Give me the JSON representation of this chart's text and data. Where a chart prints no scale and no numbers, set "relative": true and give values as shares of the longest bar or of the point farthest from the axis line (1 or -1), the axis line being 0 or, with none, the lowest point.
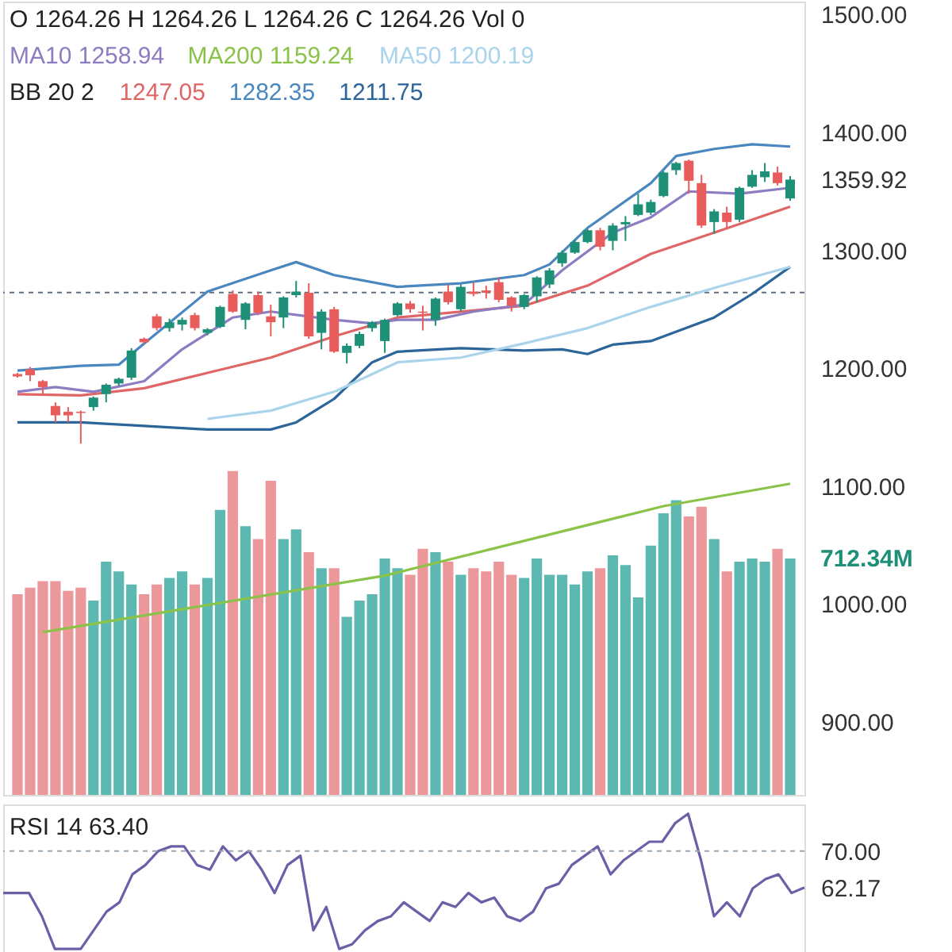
{
  "chart_data": [
    {
      "type": "candlestick",
      "title": "O 1264.26 H 1264.26 L 1264.26 C 1264.26 Vol 0",
      "legend": "top left",
      "annotations": [
        "BB 20 2"
      ],
      "categories": [
        null,
        null,
        null,
        null,
        null,
        null,
        null,
        null,
        null,
        null,
        null,
        null,
        null,
        null,
        null,
        null,
        null,
        null,
        null,
        null,
        null,
        null,
        null,
        null,
        null,
        null,
        null,
        null,
        null,
        null,
        null,
        null,
        null,
        null,
        null,
        null,
        null,
        null,
        null,
        null,
        null,
        null,
        null,
        null,
        null,
        null,
        null,
        null,
        null,
        null,
        null,
        null,
        null,
        null,
        null,
        null,
        null,
        null,
        null,
        null,
        null,
        null
      ],
      "ohlc": [
        [
          1195,
          1196,
          1192,
          1193
        ],
        [
          1199,
          1201,
          1189,
          1194
        ],
        [
          1189,
          1190,
          1178,
          1184
        ],
        [
          1168,
          1171,
          1154,
          1160
        ],
        [
          1163,
          1167,
          1154,
          1160
        ],
        [
          1163,
          1164,
          1136,
          1162
        ],
        [
          1167,
          1176,
          1164,
          1175
        ],
        [
          1178,
          1187,
          1171,
          1186
        ],
        [
          1187,
          1192,
          1185,
          1191
        ],
        [
          1192,
          1217,
          1190,
          1215
        ],
        [
          1225,
          1226,
          1221,
          1222
        ],
        [
          1244,
          1246,
          1232,
          1234
        ],
        [
          1234,
          1242,
          1231,
          1239
        ],
        [
          1237,
          1243,
          1232,
          1241
        ],
        [
          1245,
          1247,
          1232,
          1234
        ],
        [
          1230,
          1234,
          1228,
          1233
        ],
        [
          1235,
          1253,
          1234,
          1252
        ],
        [
          1263,
          1266,
          1247,
          1248
        ],
        [
          1241,
          1256,
          1233,
          1255
        ],
        [
          1262,
          1265,
          1245,
          1247
        ],
        [
          1244,
          1254,
          1227,
          1239
        ],
        [
          1243,
          1261,
          1234,
          1260
        ],
        [
          1262,
          1274,
          1260,
          1265
        ],
        [
          1264,
          1272,
          1225,
          1227
        ],
        [
          1230,
          1250,
          1216,
          1248
        ],
        [
          1250,
          1252,
          1213,
          1214
        ],
        [
          1213,
          1221,
          1204,
          1219
        ],
        [
          1219,
          1231,
          1217,
          1229
        ],
        [
          1234,
          1240,
          1231,
          1239
        ],
        [
          1223,
          1242,
          1213,
          1241
        ],
        [
          1245,
          1256,
          1244,
          1255
        ],
        [
          1255,
          1257,
          1247,
          1250
        ],
        [
          1248,
          1253,
          1232,
          1247
        ],
        [
          1241,
          1260,
          1236,
          1259
        ],
        [
          1265,
          1271,
          1254,
          1256
        ],
        [
          1250,
          1271,
          1248,
          1269
        ],
        [
          1265,
          1273,
          1261,
          1263
        ],
        [
          1266,
          1270,
          1259,
          1264
        ],
        [
          1273,
          1277,
          1256,
          1258
        ],
        [
          1260,
          1261,
          1248,
          1253
        ],
        [
          1252,
          1263,
          1250,
          1262
        ],
        [
          1261,
          1278,
          1256,
          1277
        ],
        [
          1271,
          1285,
          1268,
          1283
        ],
        [
          1289,
          1300,
          1286,
          1298
        ],
        [
          1298,
          1309,
          1297,
          1307
        ],
        [
          1307,
          1318,
          1306,
          1317
        ],
        [
          1317,
          1319,
          1300,
          1303
        ],
        [
          1308,
          1323,
          1300,
          1321
        ],
        [
          1322,
          1329,
          1308,
          1324
        ],
        [
          1330,
          1348,
          1329,
          1339
        ],
        [
          1332,
          1343,
          1330,
          1341
        ],
        [
          1346,
          1367,
          1345,
          1366
        ],
        [
          1368,
          1375,
          1364,
          1374
        ],
        [
          1376,
          1377,
          1348,
          1359
        ],
        [
          1357,
          1364,
          1319,
          1321
        ],
        [
          1324,
          1335,
          1314,
          1333
        ],
        [
          1332,
          1337,
          1319,
          1324
        ],
        [
          1326,
          1354,
          1324,
          1353
        ],
        [
          1354,
          1368,
          1353,
          1364
        ],
        [
          1362,
          1374,
          1358,
          1367
        ],
        [
          1366,
          1371,
          1355,
          1357
        ],
        [
          1344,
          1363,
          1342,
          1360
        ]
      ],
      "colors": [
        "#e85c5c",
        "#e85c5c",
        "#e85c5c",
        "#e85c5c",
        "#e85c5c",
        "#e85c5c",
        "#1e9078",
        "#1e9078",
        "#1e9078",
        "#1e9078",
        "#e85c5c",
        "#e85c5c",
        "#1e9078",
        "#1e9078",
        "#e85c5c",
        "#1e9078",
        "#1e9078",
        "#e85c5c",
        "#1e9078",
        "#e85c5c",
        "#e85c5c",
        "#1e9078",
        "#1e9078",
        "#e85c5c",
        "#1e9078",
        "#e85c5c",
        "#1e9078",
        "#1e9078",
        "#1e9078",
        "#1e9078",
        "#1e9078",
        "#e85c5c",
        "#e85c5c",
        "#1e9078",
        "#e85c5c",
        "#1e9078",
        "#e85c5c",
        "#e85c5c",
        "#e85c5c",
        "#e85c5c",
        "#1e9078",
        "#1e9078",
        "#1e9078",
        "#1e9078",
        "#1e9078",
        "#1e9078",
        "#e85c5c",
        "#1e9078",
        "#1e9078",
        "#1e9078",
        "#1e9078",
        "#1e9078",
        "#1e9078",
        "#e85c5c",
        "#e85c5c",
        "#1e9078",
        "#e85c5c",
        "#1e9078",
        "#1e9078",
        "#1e9078",
        "#e85c5c",
        "#1e9078"
      ],
      "series": [
        {
          "type": "line",
          "name": "1247.05",
          "color": "#e06666",
          "values": [
            1178,
            null,
            null,
            null,
            null,
            1177,
            null,
            null,
            null,
            null,
            1183,
            null,
            null,
            null,
            null,
            1196,
            null,
            null,
            null,
            null,
            1209,
            null,
            null,
            null,
            null,
            1227,
            null,
            null,
            null,
            null,
            1243,
            null,
            null,
            null,
            null,
            1248,
            null,
            null,
            null,
            null,
            1253,
            null,
            null,
            null,
            null,
            1270,
            null,
            null,
            null,
            null,
            1297,
            null,
            null,
            null,
            null,
            1315,
            null,
            null,
            null,
            null,
            null,
            1337
          ]
        },
        {
          "type": "line",
          "name": "1282.35",
          "color": "#4a87bf",
          "values": [
            1198,
            null,
            null,
            null,
            null,
            1202,
            null,
            null,
            1203,
            null,
            1221,
            null,
            null,
            null,
            null,
            1265,
            null,
            null,
            null,
            null,
            1283,
            null,
            1290,
            null,
            null,
            1279,
            null,
            null,
            null,
            null,
            1269,
            null,
            null,
            null,
            null,
            1272,
            null,
            null,
            null,
            null,
            1279,
            null,
            1288,
            null,
            null,
            1319,
            null,
            null,
            null,
            null,
            1357,
            null,
            1380,
            null,
            null,
            1386,
            null,
            null,
            1390,
            null,
            null,
            1388
          ]
        },
        {
          "type": "line",
          "name": "1211.75",
          "color": "#2c6599",
          "values": [
            1154,
            null,
            null,
            null,
            null,
            1154,
            null,
            null,
            null,
            null,
            1151,
            null,
            null,
            null,
            null,
            1148,
            null,
            null,
            null,
            null,
            1148,
            null,
            1154,
            null,
            null,
            1174,
            null,
            null,
            1205,
            null,
            1214,
            null,
            null,
            null,
            null,
            1217,
            null,
            null,
            null,
            null,
            1215,
            null,
            null,
            1216,
            null,
            1212,
            null,
            1220,
            null,
            null,
            1223,
            null,
            null,
            null,
            null,
            1243,
            null,
            null,
            1263,
            null,
            null,
            1286
          ]
        },
        {
          "type": "line",
          "name": "MA10 1258.94",
          "color": "#8e7cc3",
          "values": [
            1180,
            null,
            null,
            1184,
            null,
            null,
            1180,
            null,
            null,
            null,
            1189,
            null,
            null,
            1216,
            null,
            null,
            null,
            1243,
            null,
            null,
            1248,
            null,
            null,
            null,
            null,
            1241,
            null,
            null,
            1238,
            null,
            1241,
            null,
            null,
            1241,
            null,
            null,
            1248,
            null,
            null,
            null,
            1254,
            null,
            null,
            1283,
            null,
            null,
            null,
            1315,
            null,
            null,
            1328,
            null,
            null,
            1350,
            null,
            null,
            null,
            1348,
            null,
            null,
            null,
            1353
          ]
        },
        {
          "type": "line",
          "name": "MA200 1159.24",
          "color": "#8bc34a",
          "values": [
            null,
            null,
            976,
            null,
            null,
            null,
            null,
            null,
            null,
            null,
            null,
            null,
            null,
            null,
            null,
            null,
            null,
            null,
            null,
            null,
            null,
            null,
            null,
            null,
            null,
            null,
            null,
            null,
            null,
            1024,
            null,
            null,
            null,
            null,
            null,
            null,
            null,
            null,
            null,
            null,
            null,
            null,
            null,
            null,
            null,
            null,
            null,
            null,
            null,
            null,
            null,
            1083,
            null,
            null,
            null,
            null,
            null,
            null,
            null,
            null,
            null,
            1102
          ]
        },
        {
          "type": "line",
          "name": "MA50 1200.19",
          "color": "#a9d4ec",
          "values": [
            null,
            null,
            null,
            null,
            null,
            null,
            null,
            null,
            null,
            null,
            null,
            null,
            null,
            null,
            null,
            1157,
            null,
            null,
            null,
            null,
            1164,
            null,
            null,
            null,
            null,
            1180,
            null,
            null,
            null,
            null,
            1205,
            null,
            null,
            null,
            null,
            1209,
            null,
            null,
            null,
            null,
            1221,
            null,
            null,
            null,
            null,
            1234,
            null,
            null,
            null,
            null,
            1252,
            null,
            null,
            null,
            null,
            1268,
            null,
            null,
            null,
            null,
            null,
            1286
          ]
        }
      ],
      "ylim": [
        838,
        1511
      ],
      "yticks": [
        {
          "value": 900,
          "label": "900.00"
        },
        {
          "value": 1000,
          "label": "1000.00"
        },
        {
          "value": 1100,
          "label": "1100.00"
        },
        {
          "value": 1200,
          "label": "1200.00"
        },
        {
          "value": 1300,
          "label": "1300.00"
        },
        {
          "value": 1359.92,
          "label": "1359.92"
        },
        {
          "value": 1400,
          "label": "1400.00"
        },
        {
          "value": 1500,
          "label": "1500.00"
        }
      ],
      "ref_lines": [
        {
          "axis": "y",
          "value": 1264.26,
          "line_style": "dashed",
          "color": "#607080"
        }
      ],
      "tick_labels": "y"
    },
    {
      "type": "bar",
      "relative": true,
      "annotations": [
        "712.34M"
      ],
      "categories": [
        null,
        null,
        null,
        null,
        null,
        null,
        null,
        null,
        null,
        null,
        null,
        null,
        null,
        null,
        null,
        null,
        null,
        null,
        null,
        null,
        null,
        null,
        null,
        null,
        null,
        null,
        null,
        null,
        null,
        null,
        null,
        null,
        null,
        null,
        null,
        null,
        null,
        null,
        null,
        null,
        null,
        null,
        null,
        null,
        null,
        null,
        null,
        null,
        null,
        null,
        null,
        null,
        null,
        null,
        null,
        null,
        null,
        null,
        null,
        null,
        null,
        null
      ],
      "values": [
        0.62,
        0.64,
        0.66,
        0.66,
        0.63,
        0.64,
        0.6,
        0.72,
        0.69,
        0.65,
        0.62,
        0.65,
        0.67,
        0.69,
        0.65,
        0.67,
        0.88,
        1.0,
        0.83,
        0.79,
        0.97,
        0.79,
        0.82,
        0.75,
        0.7,
        0.7,
        0.55,
        0.6,
        0.62,
        0.73,
        0.7,
        0.68,
        0.76,
        0.75,
        0.72,
        0.68,
        0.7,
        0.69,
        0.72,
        0.68,
        0.67,
        0.73,
        0.68,
        0.68,
        0.65,
        0.69,
        0.7,
        0.74,
        0.71,
        0.61,
        0.77,
        0.87,
        0.91,
        0.86,
        0.89,
        0.79,
        0.69,
        0.72,
        0.73,
        0.72,
        0.76,
        0.73
      ],
      "colors": [
        "#ec9799",
        "#ec9799",
        "#ec9799",
        "#ec9799",
        "#ec9799",
        "#ec9799",
        "#5db8b1",
        "#5db8b1",
        "#5db8b1",
        "#5db8b1",
        "#ec9799",
        "#ec9799",
        "#5db8b1",
        "#5db8b1",
        "#ec9799",
        "#5db8b1",
        "#5db8b1",
        "#ec9799",
        "#5db8b1",
        "#ec9799",
        "#ec9799",
        "#5db8b1",
        "#5db8b1",
        "#ec9799",
        "#5db8b1",
        "#ec9799",
        "#5db8b1",
        "#5db8b1",
        "#5db8b1",
        "#5db8b1",
        "#5db8b1",
        "#ec9799",
        "#ec9799",
        "#5db8b1",
        "#ec9799",
        "#5db8b1",
        "#ec9799",
        "#ec9799",
        "#ec9799",
        "#ec9799",
        "#5db8b1",
        "#5db8b1",
        "#5db8b1",
        "#5db8b1",
        "#5db8b1",
        "#5db8b1",
        "#ec9799",
        "#5db8b1",
        "#5db8b1",
        "#5db8b1",
        "#5db8b1",
        "#5db8b1",
        "#5db8b1",
        "#ec9799",
        "#ec9799",
        "#5db8b1",
        "#ec9799",
        "#5db8b1",
        "#5db8b1",
        "#5db8b1",
        "#ec9799",
        "#5db8b1"
      ]
    },
    {
      "type": "line",
      "title": "RSI 14 63.40",
      "categories": [
        null,
        null,
        null,
        null,
        null,
        null,
        null,
        null,
        null,
        null,
        null,
        null,
        null,
        null,
        null,
        null,
        null,
        null,
        null,
        null,
        null,
        null,
        null,
        null,
        null,
        null,
        null,
        null,
        null,
        null,
        null,
        null,
        null,
        null,
        null,
        null,
        null,
        null,
        null,
        null,
        null,
        null,
        null,
        null,
        null,
        null,
        null,
        null,
        null,
        null,
        null,
        null,
        null,
        null,
        null,
        null,
        null,
        null,
        null,
        null,
        null,
        null,
        null
      ],
      "series": [
        {
          "color": "#6b5fa8",
          "values": [
            61,
            61,
            61,
            56,
            49,
            49,
            49,
            53,
            57,
            59,
            65,
            67,
            70,
            71,
            71,
            67,
            66,
            71,
            68,
            70,
            66,
            61,
            67,
            69,
            53,
            58,
            49,
            50,
            53,
            55,
            56,
            59,
            57,
            55,
            59,
            58,
            61,
            59,
            60,
            56,
            55,
            57,
            62,
            63,
            67,
            69,
            71,
            65,
            68,
            70,
            72,
            72,
            76,
            78,
            68,
            56,
            59,
            56,
            62,
            64,
            65,
            61,
            62.17
          ]
        }
      ],
      "ylim": [
        48,
        80
      ],
      "yticks": [
        {
          "value": 70,
          "label": "70.00"
        },
        {
          "value": 62.17,
          "label": "62.17"
        }
      ],
      "ref_lines": [
        {
          "axis": "y",
          "value": 70,
          "line_style": "dashed",
          "color": "#9aa5b0"
        }
      ],
      "tick_labels": "y"
    }
  ]
}
